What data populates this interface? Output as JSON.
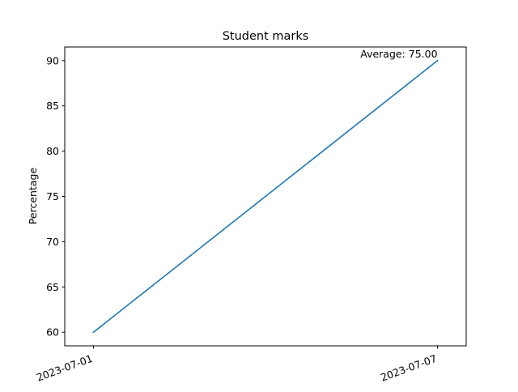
{
  "chart_data": {
    "type": "line",
    "title": "Student marks",
    "xlabel": "",
    "ylabel": "Percentage",
    "x": [
      "2023-07-01",
      "2023-07-07"
    ],
    "series": [
      {
        "values": [
          60,
          90
        ],
        "color": "#1f77b4"
      }
    ],
    "xticks": [
      "2023-07-01",
      "2023-07-07"
    ],
    "yticks": [
      60,
      65,
      70,
      75,
      80,
      85,
      90
    ],
    "xlim": [
      "2023-06-30T12:00",
      "2023-07-07T12:00"
    ],
    "ylim": [
      58.5,
      91.5
    ],
    "annotation": {
      "text": "Average: 75.00",
      "x": "2023-07-07",
      "y": 90
    },
    "grid": false,
    "legend": "none"
  }
}
